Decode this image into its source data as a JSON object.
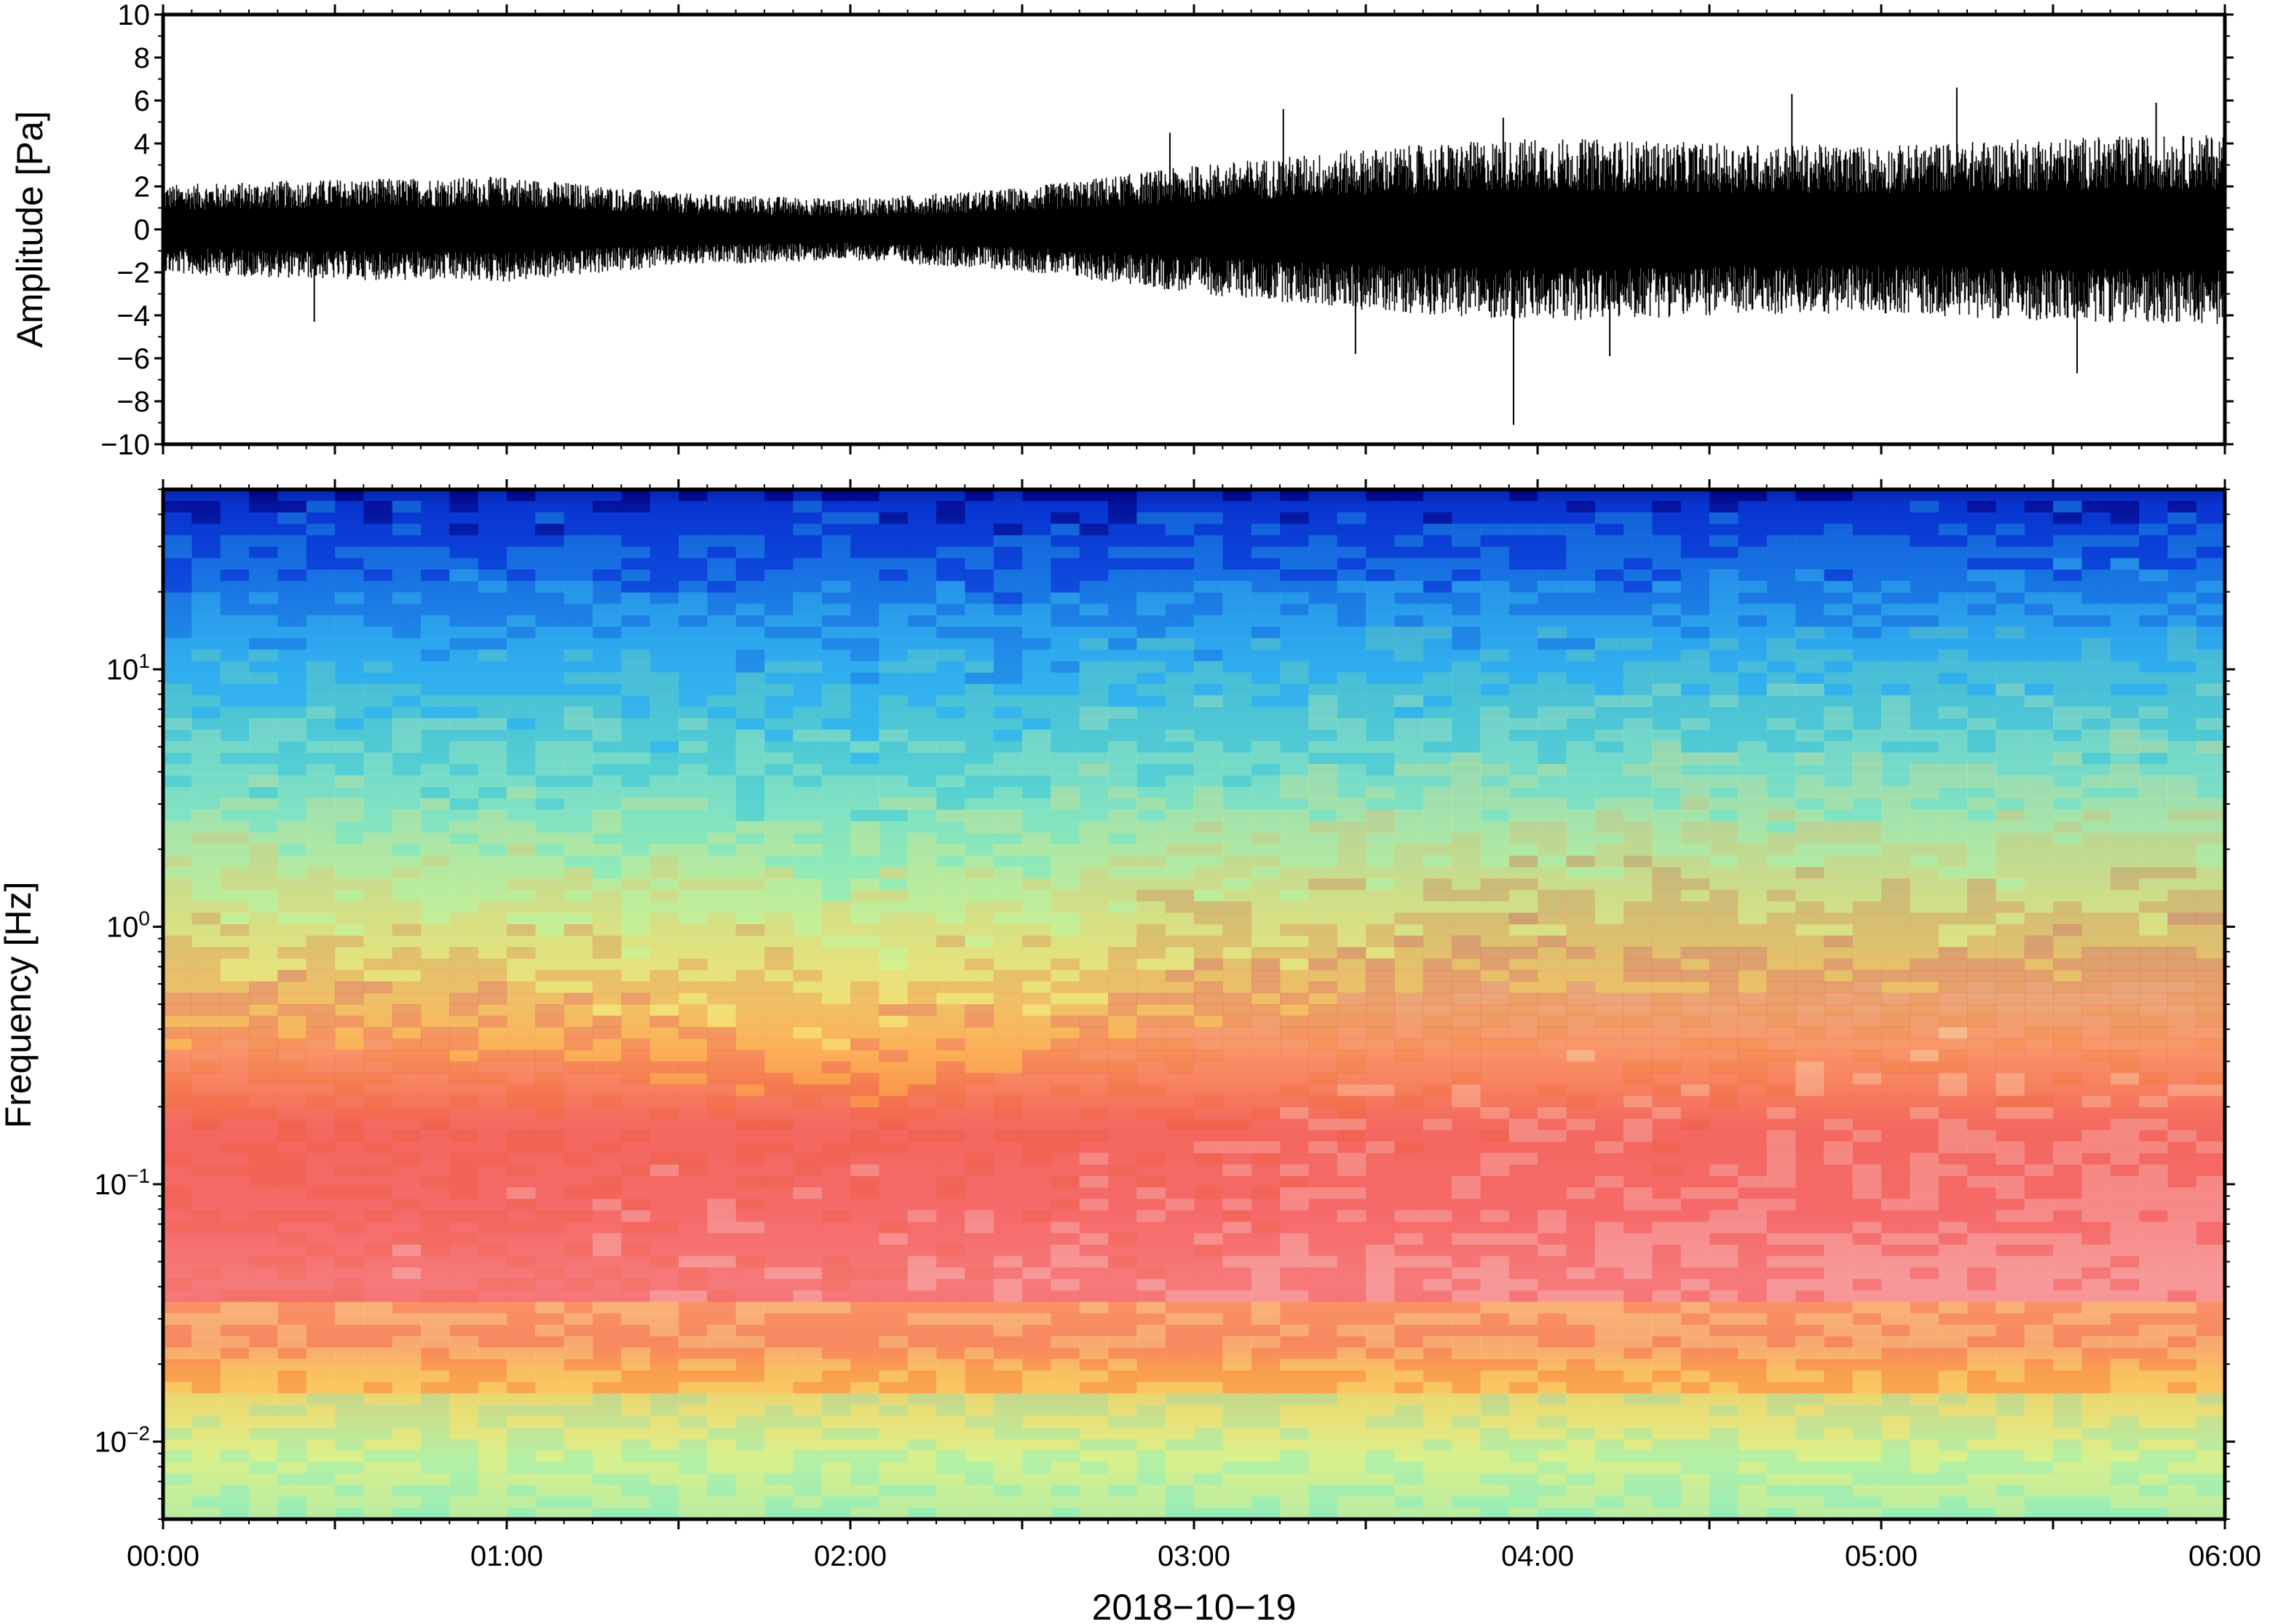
{
  "chart_data": [
    {
      "type": "line",
      "name": "waveform",
      "ylabel": "Amplitude [Pa]",
      "ylim": [
        -10,
        10
      ],
      "yticks": [
        -10,
        -8,
        -6,
        -4,
        -2,
        0,
        2,
        4,
        6,
        8,
        10
      ],
      "ytick_labels": [
        "−10",
        "−8",
        "−6",
        "−4",
        "−2",
        "0",
        "2",
        "4",
        "6",
        "8",
        "10"
      ],
      "xlim": [
        "00:00",
        "06:00"
      ],
      "grid": false,
      "envelope": {
        "x_hours": [
          0.0,
          0.5,
          1.0,
          1.5,
          2.0,
          2.5,
          3.0,
          3.5,
          4.0,
          4.5,
          5.0,
          5.5,
          6.0
        ],
        "typical_abs_amplitude_pa": [
          1.6,
          1.8,
          1.9,
          1.3,
          1.1,
          1.5,
          2.3,
          2.9,
          3.3,
          3.1,
          3.0,
          3.3,
          3.4
        ]
      },
      "spikes": [
        {
          "x_hour": 0.44,
          "value": -4.3
        },
        {
          "x_hour": 2.93,
          "value": 4.5
        },
        {
          "x_hour": 3.26,
          "value": 5.6
        },
        {
          "x_hour": 3.47,
          "value": -5.8
        },
        {
          "x_hour": 3.9,
          "value": 5.2
        },
        {
          "x_hour": 3.93,
          "value": -9.1
        },
        {
          "x_hour": 4.21,
          "value": -5.9
        },
        {
          "x_hour": 4.74,
          "value": 6.3
        },
        {
          "x_hour": 5.22,
          "value": 6.6
        },
        {
          "x_hour": 5.57,
          "value": -6.7
        },
        {
          "x_hour": 5.8,
          "value": 5.9
        }
      ]
    },
    {
      "type": "heatmap",
      "name": "spectrogram",
      "ylabel": "Frequency [Hz]",
      "yscale": "log",
      "ylim": [
        0.005,
        50
      ],
      "yticks": [
        0.01,
        0.1,
        1,
        10
      ],
      "ytick_labels": [
        {
          "base": "10",
          "exp": "−2"
        },
        {
          "base": "10",
          "exp": "−1"
        },
        {
          "base": "10",
          "exp": "0"
        },
        {
          "base": "10",
          "exp": "1"
        }
      ],
      "xlabel": "2018−10−19",
      "xlim": [
        "00:00",
        "06:00"
      ],
      "xtick_labels": [
        "00:00",
        "01:00",
        "02:00",
        "03:00",
        "04:00",
        "05:00",
        "06:00"
      ],
      "colormap": [
        "#00007f",
        "#0a3ad7",
        "#1c86e6",
        "#33bdf0",
        "#5fd8c8",
        "#9ef0b4",
        "#dcf08c",
        "#fbd76b",
        "#fb9a4c",
        "#f26050",
        "#f66a6a",
        "#f8a2a2"
      ],
      "peak_band_top_hz": {
        "x_hours": [
          0.0,
          1.0,
          2.0,
          2.5,
          3.0,
          4.0,
          5.0,
          6.0
        ],
        "freq_hz": [
          0.35,
          0.3,
          0.2,
          0.25,
          0.4,
          0.55,
          0.55,
          0.6
        ]
      },
      "low_freq_floor_hz": 0.015
    }
  ]
}
